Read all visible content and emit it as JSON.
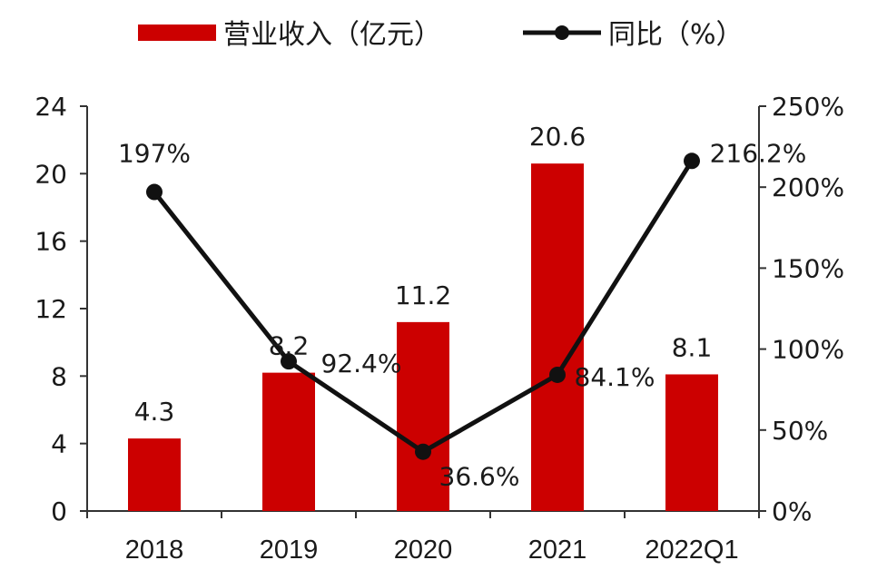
{
  "chart_data": {
    "type": "bar",
    "categories": [
      "2018",
      "2019",
      "2020",
      "2021",
      "2022Q1"
    ],
    "series": [
      {
        "name": "营业收入（亿元）",
        "type": "bar",
        "axis": "left",
        "values": [
          4.3,
          8.2,
          11.2,
          20.6,
          8.1
        ],
        "labels": [
          "4.3",
          "8.2",
          "11.2",
          "20.6",
          "8.1"
        ]
      },
      {
        "name": "同比（%）",
        "type": "line",
        "axis": "right",
        "values": [
          197,
          92.4,
          36.6,
          84.1,
          216.2
        ],
        "labels": [
          "197%",
          "92.4%",
          "36.6%",
          "84.1%",
          "216.2%"
        ]
      }
    ],
    "y_left": {
      "ylim": [
        0,
        24
      ],
      "ticks": [
        "0",
        "4",
        "8",
        "12",
        "16",
        "20",
        "24"
      ]
    },
    "y_right": {
      "ylim": [
        0,
        250
      ],
      "ticks": [
        "0%",
        "50%",
        "100%",
        "150%",
        "200%",
        "250%"
      ]
    },
    "legend": "top",
    "grid": false,
    "colors": {
      "bar": "#cc0000",
      "line": "#111111",
      "axis": "#333333"
    }
  }
}
